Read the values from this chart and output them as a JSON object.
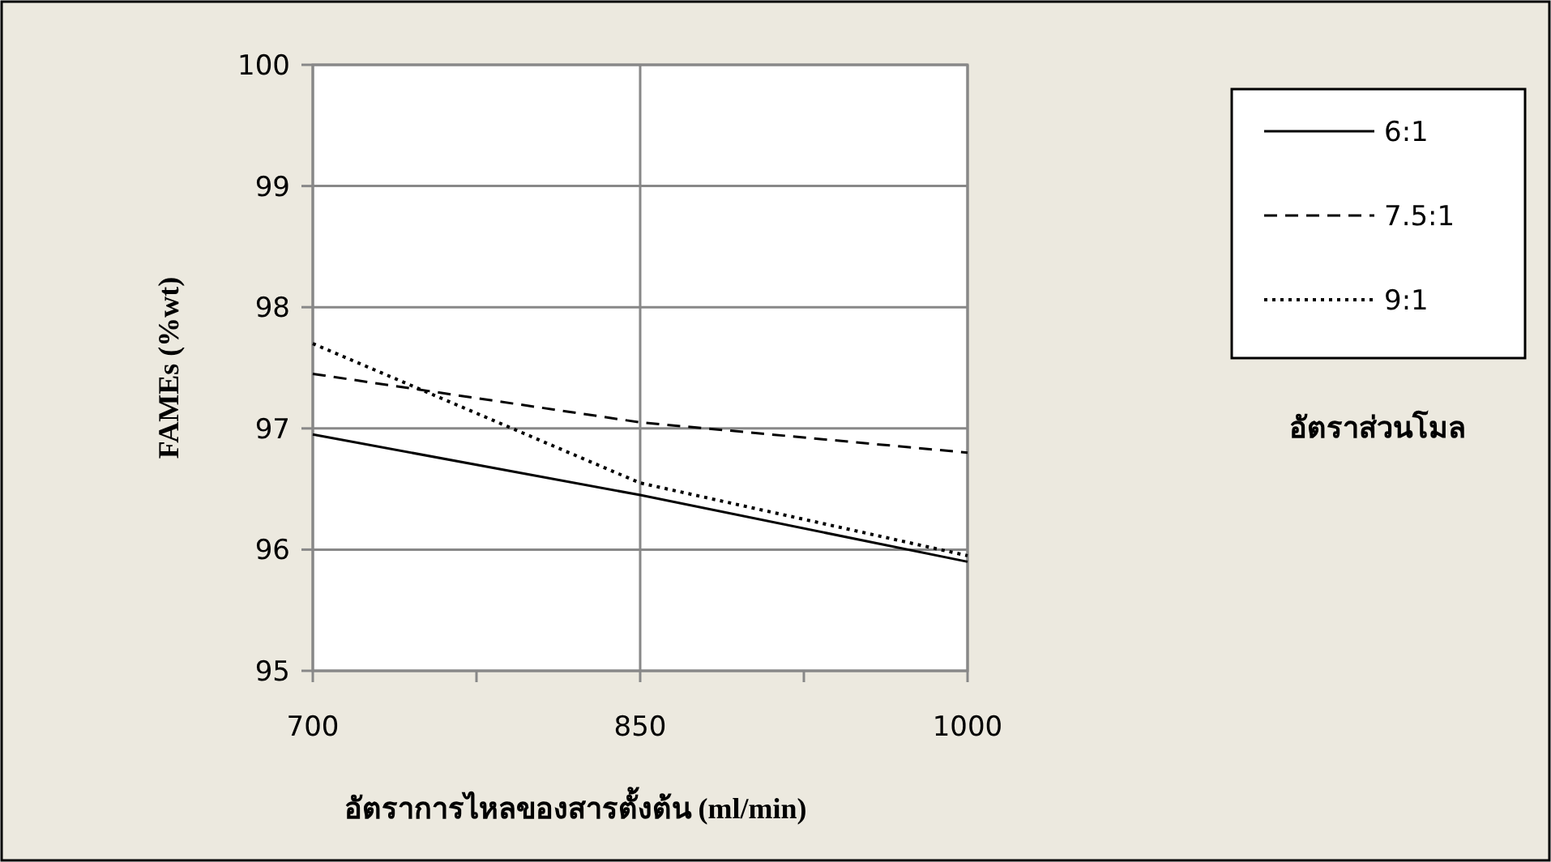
{
  "chart_data": {
    "type": "line",
    "xlabel": "อัตราการไหลของสารตั้งต้น (ml/min)",
    "ylabel": "FAMEs (%wt)",
    "legend_title": "อัตราส่วนโมล",
    "x": [
      700,
      850,
      1000
    ],
    "series": [
      {
        "name": "6:1",
        "color": "#000000",
        "line_style": "solid",
        "values": [
          96.95,
          96.45,
          95.9
        ]
      },
      {
        "name": "7.5:1",
        "color": "#000000",
        "line_style": "dashed",
        "values": [
          97.45,
          97.05,
          96.8
        ]
      },
      {
        "name": "9:1",
        "color": "#000000",
        "line_style": "dotted",
        "values": [
          97.7,
          96.55,
          95.95
        ]
      }
    ],
    "xlim": [
      700,
      1000
    ],
    "xticks": [
      700,
      850,
      1000
    ],
    "ylim": [
      95,
      100
    ],
    "yticks": [
      95,
      96,
      97,
      98,
      99,
      100
    ],
    "grid": true,
    "legend": "right",
    "marker": "none"
  }
}
